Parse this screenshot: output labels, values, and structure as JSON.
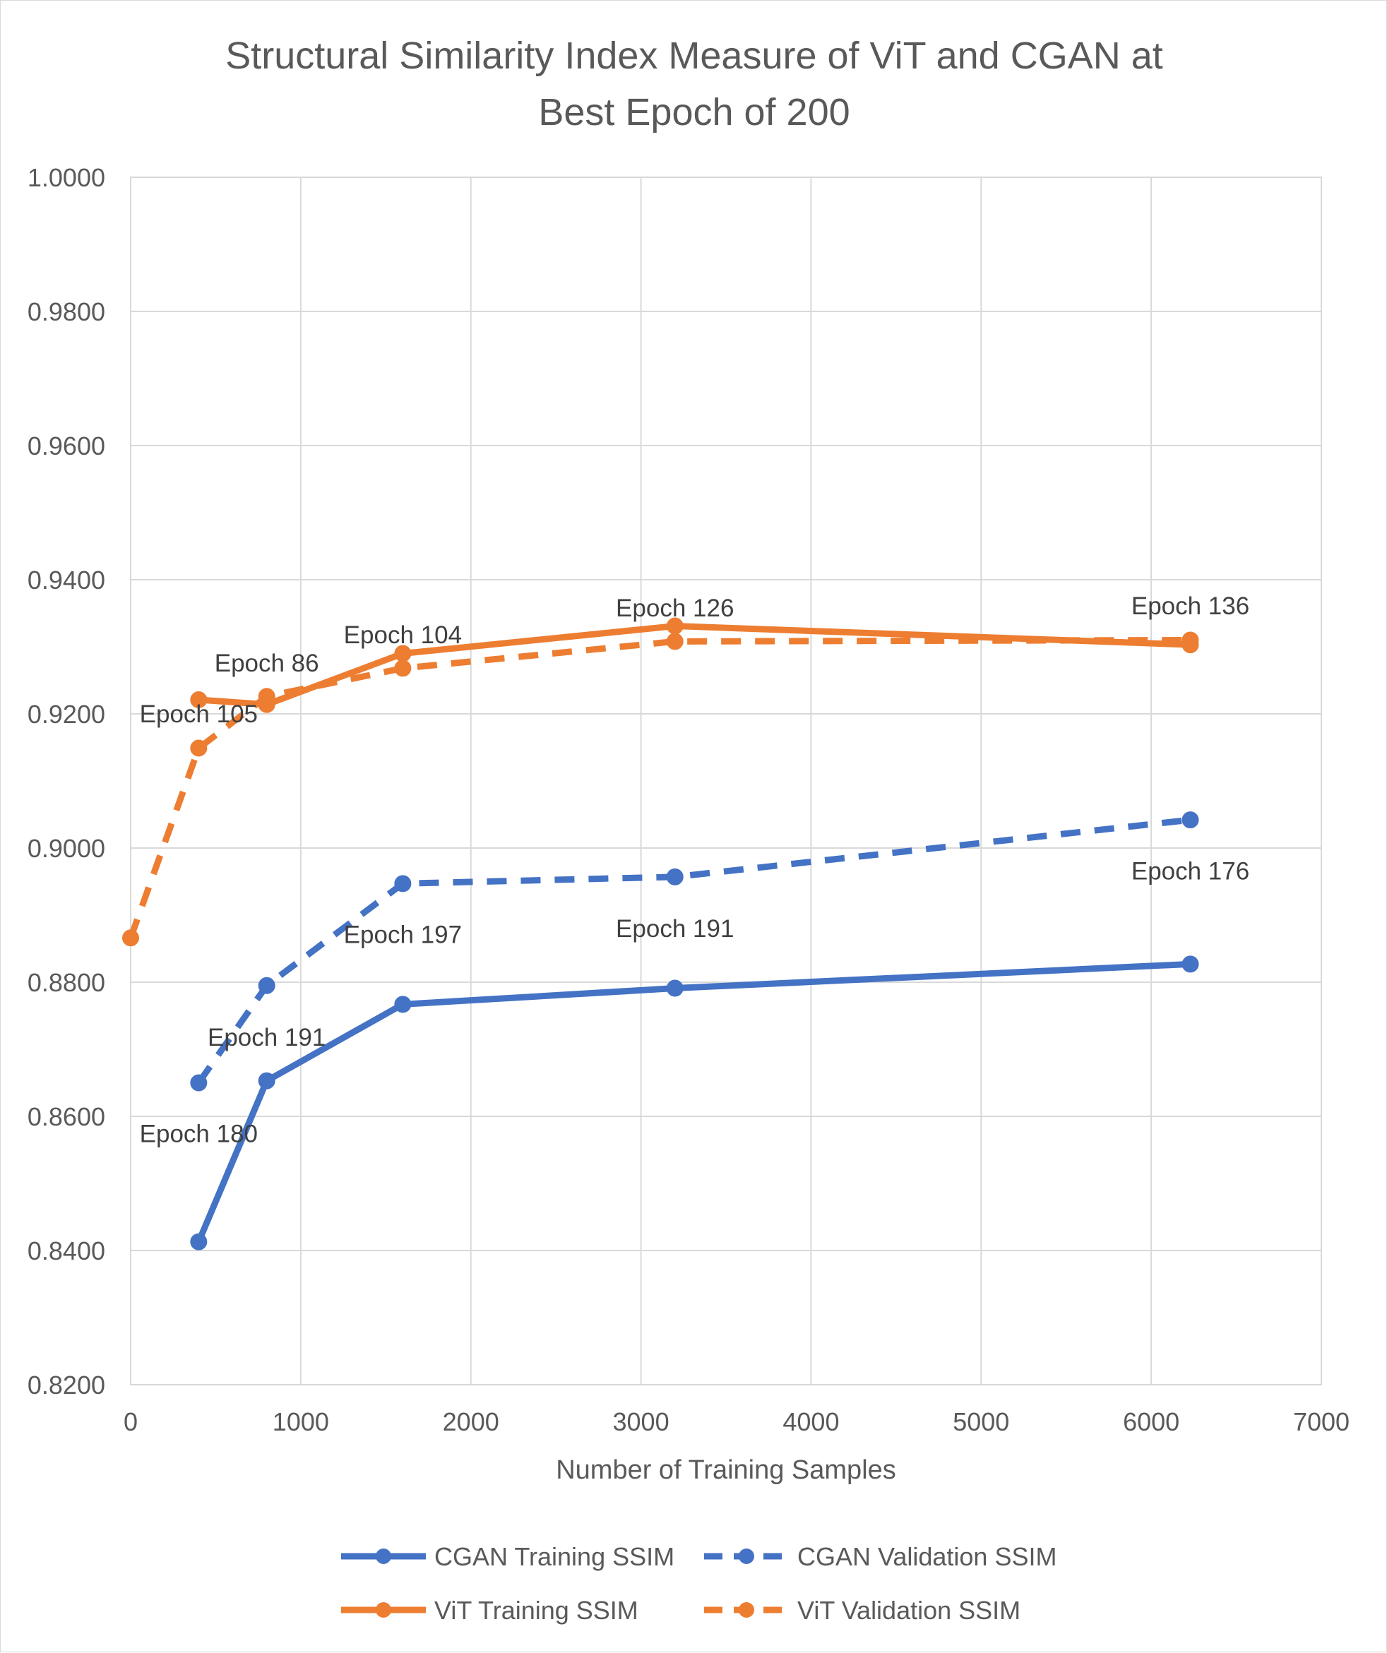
{
  "chart_data": {
    "type": "line",
    "title": [
      "Structural Similarity Index Measure of ViT and CGAN at",
      "Best Epoch of 200"
    ],
    "xlabel": "Number of Training Samples",
    "ylabel": "",
    "xlim": [
      0,
      7000
    ],
    "ylim": [
      0.82,
      1.0
    ],
    "x_ticks": [
      0,
      1000,
      2000,
      3000,
      4000,
      5000,
      6000,
      7000
    ],
    "x_tick_labels": [
      "0",
      "1000",
      "2000",
      "3000",
      "4000",
      "5000",
      "6000",
      "7000"
    ],
    "y_ticks": [
      0.82,
      0.84,
      0.86,
      0.88,
      0.9,
      0.92,
      0.94,
      0.96,
      0.98,
      1.0
    ],
    "y_tick_labels": [
      "0.8200",
      "0.8400",
      "0.8600",
      "0.8800",
      "0.9000",
      "0.9200",
      "0.9400",
      "0.9600",
      "0.9800",
      "1.0000"
    ],
    "grid": true,
    "legend_position": "bottom",
    "series": [
      {
        "name": "CGAN Training SSIM",
        "color": "#4472C4",
        "dash": "solid",
        "x": [
          400,
          800,
          1600,
          3200,
          6230
        ],
        "y": [
          0.8413,
          0.8653,
          0.8767,
          0.8791,
          0.8827
        ]
      },
      {
        "name": "CGAN Validation SSIM",
        "color": "#4472C4",
        "dash": "dashed",
        "x": [
          400,
          800,
          1600,
          3200,
          6230
        ],
        "y": [
          0.865,
          0.8795,
          0.8947,
          0.8957,
          0.9042
        ]
      },
      {
        "name": "ViT Training SSIM",
        "color": "#ED7D31",
        "dash": "solid",
        "x": [
          400,
          800,
          1600,
          3200,
          6230
        ],
        "y": [
          0.9221,
          0.9214,
          0.929,
          0.9331,
          0.9303
        ]
      },
      {
        "name": "ViT Validation SSIM",
        "color": "#ED7D31",
        "dash": "dashed",
        "x": [
          0,
          400,
          800,
          1600,
          3200,
          6230
        ],
        "y": [
          0.8866,
          0.9149,
          0.9226,
          0.9268,
          0.9308,
          0.931
        ]
      }
    ],
    "annotations": [
      {
        "text": "Epoch 105",
        "x": 400,
        "y": 0.92,
        "series": "ViT Training SSIM"
      },
      {
        "text": "Epoch 86",
        "x": 800,
        "y": 0.9276,
        "series": "ViT Training SSIM"
      },
      {
        "text": "Epoch 104",
        "x": 1600,
        "y": 0.9318,
        "series": "ViT Training SSIM"
      },
      {
        "text": "Epoch 126",
        "x": 3200,
        "y": 0.9358,
        "series": "ViT Training SSIM"
      },
      {
        "text": "Epoch 136",
        "x": 6230,
        "y": 0.9361,
        "series": "ViT Training SSIM"
      },
      {
        "text": "Epoch 180",
        "x": 400,
        "y": 0.8574,
        "series": "CGAN Validation SSIM"
      },
      {
        "text": "Epoch 191",
        "x": 800,
        "y": 0.8718,
        "series": "CGAN Validation SSIM"
      },
      {
        "text": "Epoch 197",
        "x": 1600,
        "y": 0.8871,
        "series": "CGAN Validation SSIM"
      },
      {
        "text": "Epoch 191",
        "x": 3200,
        "y": 0.888,
        "series": "CGAN Validation SSIM"
      },
      {
        "text": "Epoch 176",
        "x": 6230,
        "y": 0.8966,
        "series": "CGAN Validation SSIM"
      }
    ]
  }
}
